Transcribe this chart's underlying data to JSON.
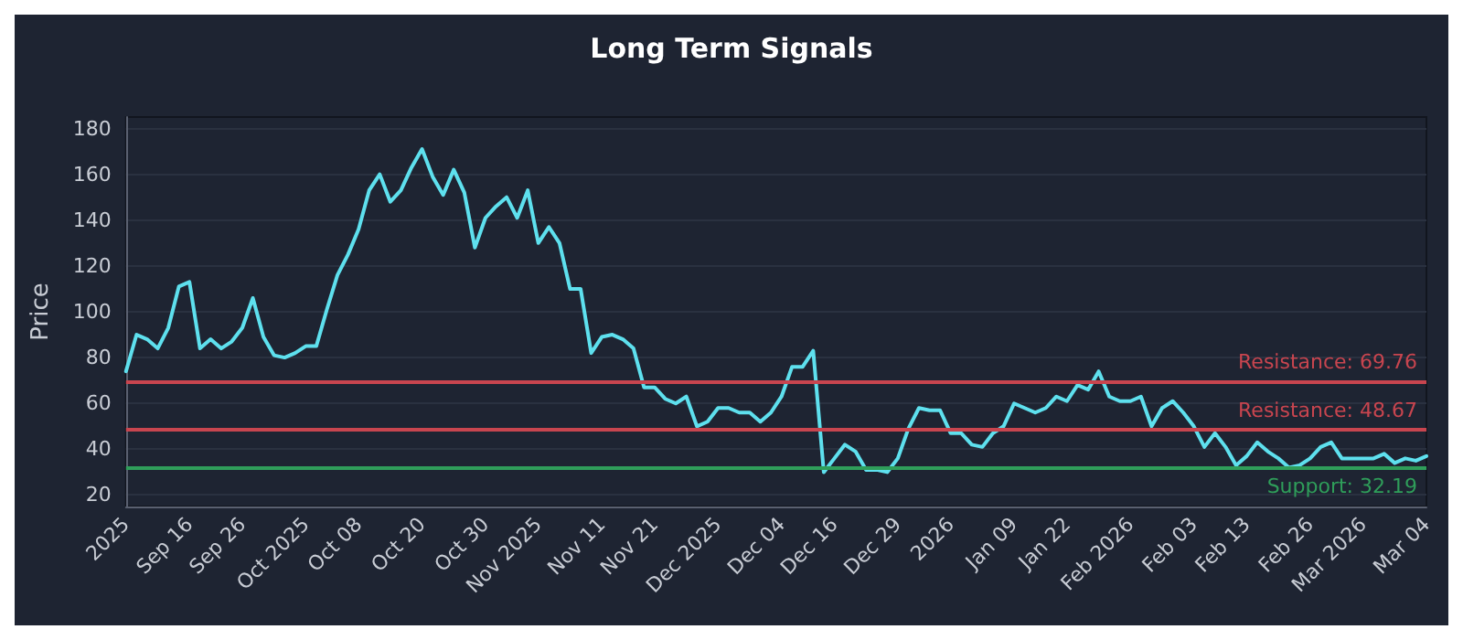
{
  "chart_data": {
    "type": "line",
    "title": "Long Term Signals",
    "ylabel": "Price",
    "categories": [
      "2025",
      null,
      null,
      null,
      null,
      null,
      "Sep 16",
      null,
      null,
      null,
      null,
      "Sep 26",
      null,
      null,
      null,
      null,
      null,
      "Oct 2025",
      null,
      null,
      null,
      null,
      "Oct 08",
      null,
      null,
      null,
      null,
      null,
      "Oct 20",
      null,
      null,
      null,
      null,
      null,
      "Oct 30",
      null,
      null,
      null,
      null,
      "Nov 2025",
      null,
      null,
      null,
      null,
      null,
      "Nov 11",
      null,
      null,
      null,
      null,
      "Nov 21",
      null,
      null,
      null,
      null,
      null,
      "Dec 2025",
      null,
      null,
      null,
      null,
      null,
      "Dec 04",
      null,
      null,
      null,
      null,
      "Dec 16",
      null,
      null,
      null,
      null,
      null,
      "Dec 29",
      null,
      null,
      null,
      null,
      "2026",
      null,
      null,
      null,
      null,
      null,
      "Jan 09",
      null,
      null,
      null,
      null,
      "Jan 22",
      null,
      null,
      null,
      null,
      null,
      "Feb 2026",
      null,
      null,
      null,
      null,
      null,
      "Feb 03",
      null,
      null,
      null,
      null,
      "Feb 13",
      null,
      null,
      null,
      null,
      null,
      "Feb 26",
      null,
      null,
      null,
      null,
      "Mar 2026",
      null,
      null,
      null,
      null,
      null,
      "Mar 04"
    ],
    "series": [
      {
        "color": "#5ee0ee",
        "values": [
          74,
          90,
          88,
          84,
          93,
          111,
          113,
          84,
          88,
          84,
          87,
          93,
          106,
          89,
          81,
          80,
          82,
          85,
          85,
          101,
          116,
          125,
          136,
          153,
          160,
          148,
          153,
          163,
          171,
          159,
          151,
          162,
          152,
          128,
          141,
          146,
          150,
          141,
          153,
          130,
          137,
          130,
          110,
          110,
          82,
          89,
          90,
          88,
          84,
          67,
          67,
          62,
          60,
          63,
          50,
          52,
          58,
          58,
          56,
          56,
          52,
          56,
          63,
          76,
          76,
          83,
          30,
          36,
          42,
          39,
          31,
          31,
          30,
          36,
          49,
          58,
          57,
          57,
          47,
          47,
          42,
          41,
          47,
          50,
          60,
          58,
          56,
          58,
          63,
          61,
          68,
          66,
          74,
          63,
          61,
          61,
          63,
          50,
          58,
          61,
          56,
          50,
          41,
          47,
          41,
          33,
          37,
          43,
          39,
          36,
          32,
          33,
          36,
          41,
          43,
          36,
          36,
          36,
          36,
          38,
          34,
          36,
          35,
          37
        ]
      }
    ],
    "ylim": [
      15,
      185
    ],
    "yticks": [
      20,
      40,
      60,
      80,
      100,
      120,
      140,
      160,
      180
    ],
    "grid": "y",
    "marker": "none",
    "line_style": "solid",
    "ref_lines": [
      {
        "axis": "y",
        "value": 69.76,
        "label": "Resistance: 69.76",
        "color": "#c8454f"
      },
      {
        "axis": "y",
        "value": 48.67,
        "label": "Resistance: 48.67",
        "color": "#c8454f"
      },
      {
        "axis": "y",
        "value": 32.19,
        "label": "Support: 32.19",
        "color": "#2f9e5a"
      }
    ]
  }
}
